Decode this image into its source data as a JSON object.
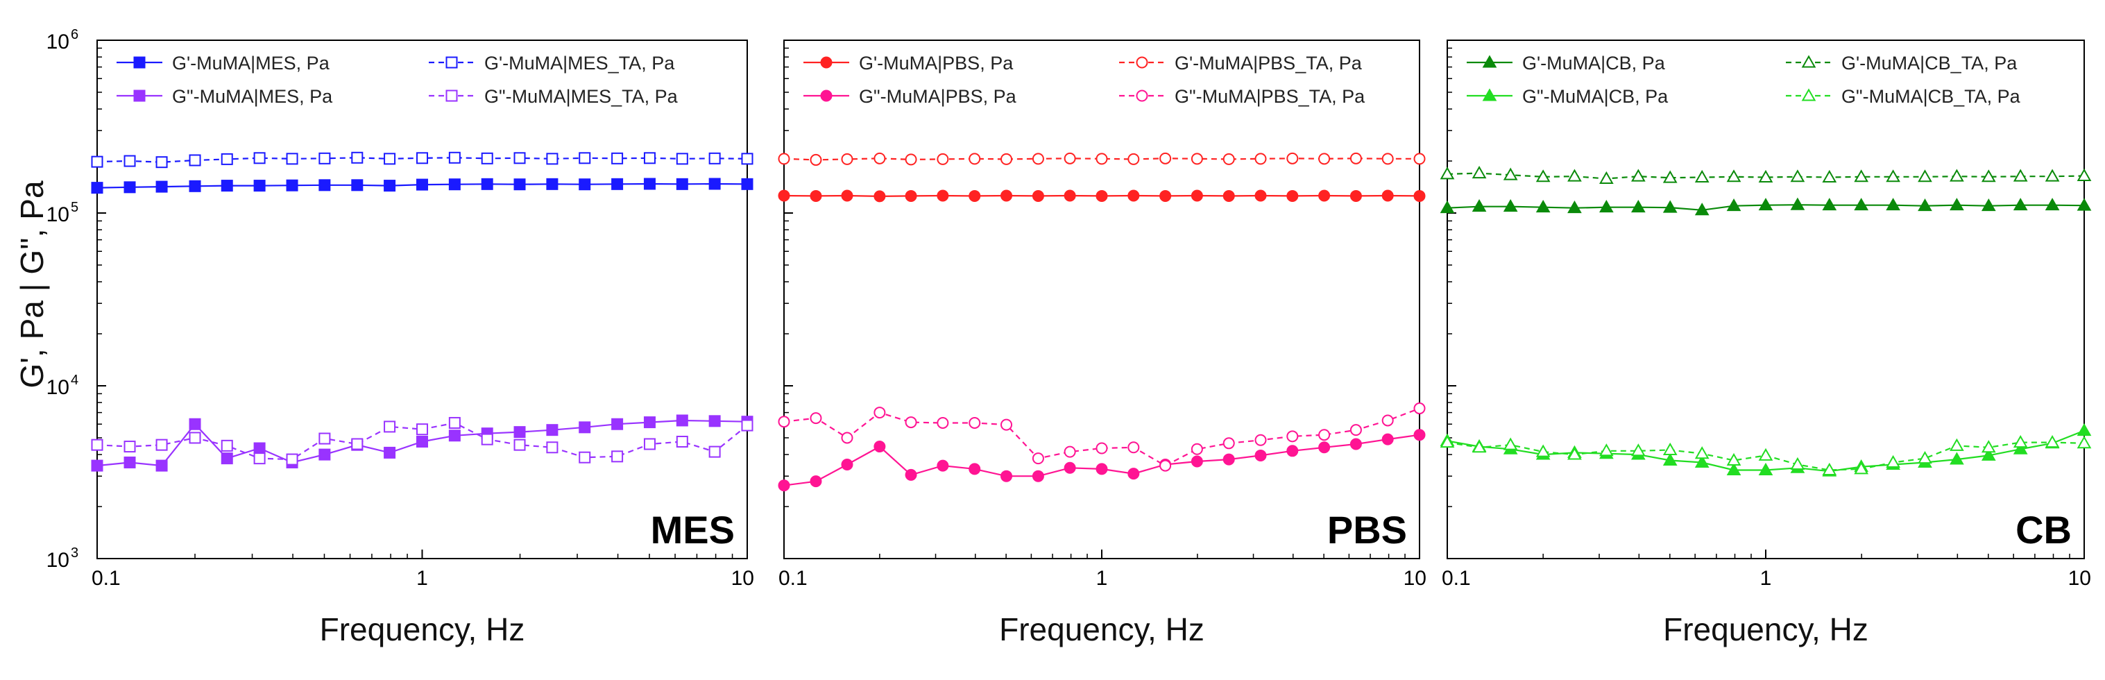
{
  "figure": {
    "ylabel": "G', Pa | G'', Pa",
    "y_tick_exponents": [
      "6",
      "5",
      "4",
      "3"
    ],
    "y_tick_base": "10"
  },
  "chart_data": [
    {
      "type": "line",
      "panel_label": "MES",
      "xlabel": "Frequency, Hz",
      "ylabel": "G', Pa | G'', Pa",
      "xscale": "log",
      "yscale": "log",
      "xlim": [
        0.1,
        10
      ],
      "ylim": [
        1000,
        1000000
      ],
      "x_ticks": [
        "0.1",
        "1",
        "10"
      ],
      "legend_position": "top-left",
      "x": [
        0.1,
        0.126,
        0.158,
        0.2,
        0.251,
        0.316,
        0.398,
        0.501,
        0.631,
        0.794,
        1.0,
        1.259,
        1.585,
        1.995,
        2.512,
        3.162,
        3.981,
        5.012,
        6.31,
        7.943,
        10.0
      ],
      "series": [
        {
          "name": "G'-MuMA|MES, Pa",
          "color": "#1a1aff",
          "marker": "square",
          "filled": true,
          "dashed": false,
          "values": [
            140000,
            141000,
            142000,
            143000,
            144000,
            144000,
            144500,
            145000,
            145000,
            144000,
            146000,
            146500,
            147000,
            146500,
            147000,
            146500,
            147000,
            147500,
            147000,
            147500,
            147000
          ]
        },
        {
          "name": "G'-MuMA|MES_TA, Pa",
          "color": "#1a1aff",
          "marker": "square",
          "filled": false,
          "dashed": true,
          "values": [
            198000,
            200000,
            197000,
            202000,
            205000,
            208000,
            206000,
            207000,
            209000,
            206000,
            208000,
            209000,
            207000,
            208000,
            206000,
            208000,
            207000,
            208000,
            206000,
            207000,
            206000
          ]
        },
        {
          "name": "G\"-MuMA|MES, Pa",
          "color": "#9933ff",
          "marker": "square",
          "filled": true,
          "dashed": false,
          "values": [
            3450,
            3600,
            3450,
            6000,
            3800,
            4350,
            3600,
            4000,
            4550,
            4100,
            4750,
            5150,
            5300,
            5400,
            5550,
            5750,
            6000,
            6150,
            6300,
            6250,
            6200
          ]
        },
        {
          "name": "G\"-MuMA|MES_TA, Pa",
          "color": "#9933ff",
          "marker": "square",
          "filled": false,
          "dashed": true,
          "values": [
            4550,
            4450,
            4550,
            5000,
            4500,
            3800,
            3750,
            4950,
            4600,
            5800,
            5600,
            6100,
            4900,
            4550,
            4400,
            3850,
            3900,
            4600,
            4750,
            4150,
            5900
          ]
        }
      ]
    },
    {
      "type": "line",
      "panel_label": "PBS",
      "xlabel": "Frequency, Hz",
      "ylabel": "G', Pa | G'', Pa",
      "xscale": "log",
      "yscale": "log",
      "xlim": [
        0.1,
        10
      ],
      "ylim": [
        1000,
        1000000
      ],
      "x_ticks": [
        "0.1",
        "1",
        "10"
      ],
      "legend_position": "top-left",
      "x": [
        0.1,
        0.126,
        0.158,
        0.2,
        0.251,
        0.316,
        0.398,
        0.501,
        0.631,
        0.794,
        1.0,
        1.259,
        1.585,
        1.995,
        2.512,
        3.162,
        3.981,
        5.012,
        6.31,
        7.943,
        10.0
      ],
      "series": [
        {
          "name": "G'-MuMA|PBS, Pa",
          "color": "#ff2222",
          "marker": "circle",
          "filled": true,
          "dashed": false,
          "values": [
            126000,
            125500,
            126000,
            125000,
            125500,
            126000,
            125500,
            126000,
            125500,
            126000,
            125500,
            126000,
            125500,
            126000,
            125500,
            126000,
            125500,
            126000,
            125500,
            126000,
            125500
          ]
        },
        {
          "name": "G'-MuMA|PBS_TA, Pa",
          "color": "#ff2222",
          "marker": "circle",
          "filled": false,
          "dashed": true,
          "values": [
            206000,
            203000,
            205000,
            207000,
            204000,
            205000,
            206000,
            205000,
            206000,
            207000,
            206000,
            205000,
            207000,
            206000,
            205000,
            206000,
            207000,
            206000,
            207000,
            206000,
            206000
          ]
        },
        {
          "name": "G\"-MuMA|PBS, Pa",
          "color": "#ff1493",
          "marker": "circle",
          "filled": true,
          "dashed": false,
          "values": [
            2650,
            2800,
            3500,
            4450,
            3050,
            3450,
            3300,
            3000,
            3000,
            3350,
            3300,
            3100,
            3500,
            3650,
            3750,
            3950,
            4200,
            4400,
            4600,
            4900,
            5200
          ]
        },
        {
          "name": "G\"-MuMA|PBS_TA, Pa",
          "color": "#ff1493",
          "marker": "circle",
          "filled": false,
          "dashed": true,
          "values": [
            6200,
            6500,
            5000,
            7000,
            6150,
            6100,
            6100,
            5950,
            3800,
            4150,
            4350,
            4400,
            3450,
            4300,
            4650,
            4850,
            5100,
            5200,
            5550,
            6300,
            7400
          ]
        }
      ]
    },
    {
      "type": "line",
      "panel_label": "CB",
      "xlabel": "Frequency, Hz",
      "ylabel": "G', Pa | G'', Pa",
      "xscale": "log",
      "yscale": "log",
      "xlim": [
        0.1,
        10
      ],
      "ylim": [
        1000,
        1000000
      ],
      "x_ticks": [
        "0.1",
        "1",
        "10"
      ],
      "legend_position": "top-left",
      "x": [
        0.1,
        0.126,
        0.158,
        0.2,
        0.251,
        0.316,
        0.398,
        0.501,
        0.631,
        0.794,
        1.0,
        1.259,
        1.585,
        1.995,
        2.512,
        3.162,
        3.981,
        5.012,
        6.31,
        7.943,
        10.0
      ],
      "series": [
        {
          "name": "G'-MuMA|CB, Pa",
          "color": "#0a8a0a",
          "marker": "triangle",
          "filled": true,
          "dashed": false,
          "values": [
            107000,
            109000,
            109000,
            108000,
            107000,
            108000,
            108000,
            107500,
            104000,
            110000,
            111000,
            111500,
            111000,
            111000,
            111000,
            110000,
            111000,
            110000,
            111000,
            111000,
            110500
          ]
        },
        {
          "name": "G'-MuMA|CB_TA, Pa",
          "color": "#0a8a0a",
          "marker": "triangle",
          "filled": false,
          "dashed": true,
          "values": [
            168000,
            170000,
            166000,
            162000,
            163000,
            158000,
            163000,
            160000,
            161000,
            162000,
            161000,
            162000,
            161000,
            162000,
            162000,
            162000,
            163000,
            162000,
            163000,
            163000,
            164000
          ]
        },
        {
          "name": "G\"-MuMA|CB, Pa",
          "color": "#22dd22",
          "marker": "triangle",
          "filled": true,
          "dashed": false,
          "values": [
            4800,
            4450,
            4300,
            4000,
            4100,
            4050,
            4000,
            3700,
            3600,
            3250,
            3250,
            3350,
            3200,
            3400,
            3500,
            3600,
            3750,
            3950,
            4300,
            4650,
            5500
          ]
        },
        {
          "name": "G\"-MuMA|CB_TA, Pa",
          "color": "#22dd22",
          "marker": "triangle",
          "filled": false,
          "dashed": true,
          "values": [
            4700,
            4400,
            4550,
            4150,
            4000,
            4200,
            4200,
            4250,
            4050,
            3700,
            3950,
            3500,
            3250,
            3300,
            3600,
            3800,
            4500,
            4400,
            4700,
            4700,
            4650
          ]
        }
      ]
    }
  ]
}
